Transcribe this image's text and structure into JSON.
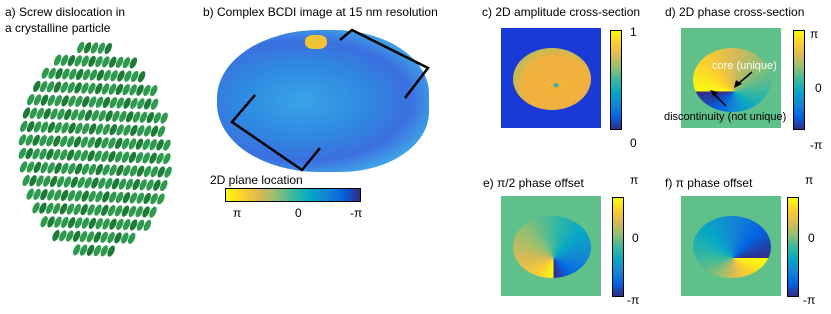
{
  "panels": {
    "a": {
      "title_lines": [
        "a) Screw dislocation in",
        "a crystalline particle"
      ]
    },
    "b": {
      "title": "b) Complex BCDI image at 15 nm resolution",
      "colorbar_label": "2D plane location",
      "colorbar_ticks": [
        "π",
        "0",
        "-π"
      ]
    },
    "c": {
      "title": "c) 2D amplitude cross-section",
      "colorbar_ticks": [
        "1",
        "0"
      ]
    },
    "d": {
      "title": "d) 2D phase cross-section",
      "colorbar_ticks": [
        "π",
        "0",
        "-π"
      ],
      "annotations": [
        "core (unique)",
        "discontinuity (not unique)"
      ]
    },
    "e": {
      "title": "e) π/2  phase offset",
      "colorbar_ticks": [
        "π",
        "0",
        "-π"
      ]
    },
    "f": {
      "title": "f) π phase offset",
      "colorbar_ticks": [
        "π",
        "0",
        "-π"
      ]
    }
  }
}
